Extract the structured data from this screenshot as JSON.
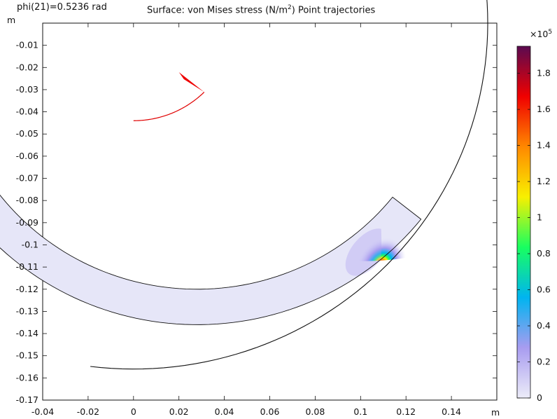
{
  "header": {
    "param_label": "phi(21)=0.5236 rad",
    "title_prefix": "Surface: von Mises stress (N/m",
    "title_sup": "2",
    "title_suffix": ") Point trajectories"
  },
  "chart_data": {
    "type": "surface",
    "title": "Surface: von Mises stress (N/m²) Point trajectories",
    "param_label": "phi(21)=0.5236 rad",
    "x_unit": "m",
    "y_unit": "m",
    "xlim": [
      -0.04,
      0.16
    ],
    "ylim": [
      -0.17,
      0.0
    ],
    "x_ticks": [
      -0.04,
      -0.02,
      0,
      0.02,
      0.04,
      0.06,
      0.08,
      0.1,
      0.12,
      0.14
    ],
    "x_tick_labels": [
      "-0.04",
      "-0.02",
      "0",
      "0.02",
      "0.04",
      "0.06",
      "0.08",
      "0.1",
      "0.12",
      "0.14"
    ],
    "y_ticks": [
      -0.01,
      -0.02,
      -0.03,
      -0.04,
      -0.05,
      -0.06,
      -0.07,
      -0.08,
      -0.09,
      -0.1,
      -0.11,
      -0.12,
      -0.13,
      -0.14,
      -0.15,
      -0.16,
      -0.17
    ],
    "y_tick_labels": [
      "-0.01",
      "-0.02",
      "-0.03",
      "-0.04",
      "-0.05",
      "-0.06",
      "-0.07",
      "-0.08",
      "-0.09",
      "-0.1",
      "-0.11",
      "-0.12",
      "-0.13",
      "-0.14",
      "-0.15",
      "-0.16",
      "-0.17"
    ],
    "colorbar": {
      "multiplier_base": "×10",
      "multiplier_exp": "5",
      "min": 0,
      "max": 1.95,
      "ticks": [
        0,
        0.2,
        0.4,
        0.6,
        0.8,
        1,
        1.2,
        1.4,
        1.6,
        1.8
      ],
      "tick_labels": [
        "0",
        "0.2",
        "0.4",
        "0.6",
        "0.8",
        "1",
        "1.2",
        "1.4",
        "1.6",
        "1.8"
      ],
      "colors": [
        "#ececf8",
        "#a89cf0",
        "#00b4f0",
        "#18ff60",
        "#f8f000",
        "#ff8800",
        "#f00000",
        "#5a0a50"
      ]
    },
    "band_surface": {
      "center": [
        0,
        0
      ],
      "start_angle_deg": 10.5,
      "end_angle_deg": 71.5,
      "inner_radius": 0.11,
      "outer_radius": 0.126,
      "base_color": "#e6e6f8",
      "hotspot": [
        0.109,
        -0.109
      ],
      "hotspot_peak": 1.95
    },
    "trajectory_black": {
      "center": [
        0.0,
        0.0
      ],
      "radius": 0.156,
      "start_angle_deg": -15.0,
      "end_angle_deg": 84.0
    },
    "trajectory_red": {
      "center": [
        0.0,
        0.0
      ],
      "radius": 0.044,
      "start_angle_deg": 45.0,
      "end_angle_deg": 90.0
    },
    "red_marker": {
      "tip": [
        0.031,
        -0.031
      ],
      "base": [
        0.02,
        -0.024
      ]
    }
  }
}
